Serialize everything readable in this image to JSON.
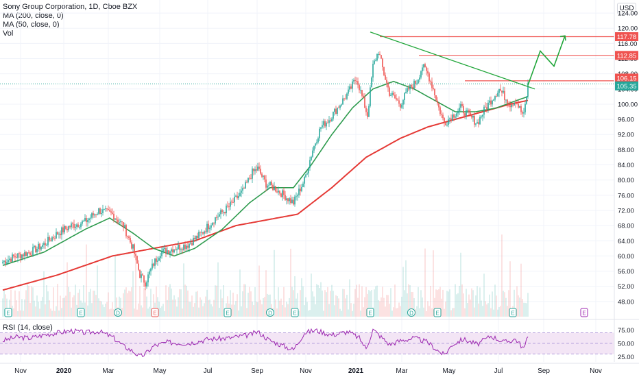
{
  "legend": {
    "title": "Sony Group Corporation, 1D, Cboe BZX",
    "ma200": "MA (200, close, 0)",
    "ma50": "MA (50, close, 0)",
    "vol": "Vol"
  },
  "currency": "USD",
  "rsi_label": "RSI (14, close)",
  "colors": {
    "up": "#26a69a",
    "down": "#ef5350",
    "ma50": "#2e9b4e",
    "ma200": "#e53935",
    "rsi": "#9c27b0",
    "rsi_band": "#f3e5f5",
    "line_trend": "#21a63a",
    "price_current": "#26a69a",
    "hline": "#ef5350"
  },
  "chart_data": [
    {
      "type": "candlestick",
      "x_axis_labels": [
        "Nov",
        "2020",
        "Mar",
        "May",
        "Jul",
        "Sep",
        "Nov",
        "2021",
        "Mar",
        "May",
        "Jul",
        "Sep",
        "Nov"
      ],
      "y_ticks": [
        48.0,
        52.0,
        56.0,
        60.0,
        64.0,
        68.0,
        72.0,
        76.0,
        80.0,
        84.0,
        88.0,
        92.0,
        96.0,
        100.0,
        104.0,
        108.0,
        112.0,
        116.0,
        120.0,
        124.0
      ],
      "ylim": [
        44,
        126
      ],
      "close_anchors": [
        [
          0,
          58.5
        ],
        [
          10,
          60
        ],
        [
          20,
          61
        ],
        [
          30,
          63
        ],
        [
          40,
          66
        ],
        [
          50,
          68
        ],
        [
          60,
          69
        ],
        [
          70,
          72
        ],
        [
          80,
          71
        ],
        [
          88,
          68
        ],
        [
          95,
          62
        ],
        [
          100,
          55
        ],
        [
          104,
          53
        ],
        [
          110,
          58
        ],
        [
          115,
          61
        ],
        [
          125,
          62
        ],
        [
          135,
          63
        ],
        [
          145,
          66
        ],
        [
          155,
          70
        ],
        [
          165,
          73
        ],
        [
          175,
          77
        ],
        [
          182,
          82
        ],
        [
          186,
          83
        ],
        [
          192,
          79
        ],
        [
          198,
          78
        ],
        [
          205,
          76
        ],
        [
          212,
          74
        ],
        [
          220,
          80
        ],
        [
          226,
          88
        ],
        [
          232,
          94
        ],
        [
          238,
          96
        ],
        [
          244,
          99
        ],
        [
          252,
          103
        ],
        [
          258,
          107
        ],
        [
          262,
          102
        ],
        [
          266,
          97
        ],
        [
          270,
          110
        ],
        [
          274,
          114
        ],
        [
          278,
          108
        ],
        [
          282,
          103
        ],
        [
          290,
          100
        ],
        [
          296,
          104
        ],
        [
          302,
          106
        ],
        [
          306,
          110
        ],
        [
          310,
          108
        ],
        [
          314,
          104
        ],
        [
          318,
          99
        ],
        [
          322,
          95
        ],
        [
          328,
          97
        ],
        [
          334,
          99
        ],
        [
          340,
          97
        ],
        [
          346,
          95
        ],
        [
          352,
          99
        ],
        [
          356,
          101
        ],
        [
          362,
          104
        ],
        [
          366,
          102
        ],
        [
          370,
          100
        ],
        [
          374,
          101
        ],
        [
          378,
          98
        ],
        [
          380,
          97
        ],
        [
          383,
          105
        ]
      ],
      "ma50_anchors": [
        [
          0,
          57.5
        ],
        [
          30,
          61
        ],
        [
          60,
          67
        ],
        [
          78,
          70
        ],
        [
          95,
          66
        ],
        [
          110,
          62
        ],
        [
          125,
          60
        ],
        [
          140,
          62
        ],
        [
          160,
          67
        ],
        [
          180,
          74
        ],
        [
          195,
          78
        ],
        [
          212,
          78
        ],
        [
          225,
          84
        ],
        [
          240,
          92
        ],
        [
          255,
          99
        ],
        [
          270,
          104
        ],
        [
          285,
          106
        ],
        [
          300,
          104
        ],
        [
          315,
          101
        ],
        [
          330,
          98
        ],
        [
          345,
          98
        ],
        [
          360,
          99
        ],
        [
          375,
          101
        ],
        [
          383,
          102
        ]
      ],
      "ma200_anchors": [
        [
          0,
          51
        ],
        [
          40,
          55
        ],
        [
          80,
          60
        ],
        [
          110,
          62
        ],
        [
          140,
          64
        ],
        [
          170,
          68
        ],
        [
          200,
          70
        ],
        [
          215,
          71
        ],
        [
          240,
          78
        ],
        [
          265,
          86
        ],
        [
          290,
          91
        ],
        [
          310,
          94
        ],
        [
          330,
          96
        ],
        [
          350,
          98
        ],
        [
          370,
          100
        ],
        [
          383,
          101
        ]
      ],
      "right_axis_price_labels": [
        "117.78",
        "112.85",
        "106.15",
        "105.35"
      ],
      "horizontal_levels": [
        {
          "value": 117.78,
          "label": "117.78"
        },
        {
          "value": 112.85,
          "label": "112.85"
        },
        {
          "value": 106.15,
          "label": "106.15"
        },
        {
          "value": 105.35,
          "label": "105.35",
          "current": true
        }
      ],
      "trendline": [
        [
          268,
          119
        ],
        [
          388,
          104
        ]
      ],
      "projection": [
        [
          383,
          105
        ],
        [
          392,
          114
        ],
        [
          402,
          110
        ],
        [
          410,
          118
        ]
      ],
      "event_markers": [
        {
          "bar": 4,
          "letter": "E"
        },
        {
          "bar": 57,
          "letter": "E"
        },
        {
          "bar": 84,
          "letter": "D"
        },
        {
          "bar": 111,
          "letter": "E"
        },
        {
          "bar": 164,
          "letter": "E"
        },
        {
          "bar": 195,
          "letter": "D"
        },
        {
          "bar": 213,
          "letter": "E"
        },
        {
          "bar": 268,
          "letter": "E"
        },
        {
          "bar": 298,
          "letter": "D"
        },
        {
          "bar": 317,
          "letter": "E"
        },
        {
          "bar": 372,
          "letter": "E"
        },
        {
          "bar": 424,
          "letter": "E"
        }
      ]
    },
    {
      "type": "line",
      "name": "RSI (14, close)",
      "y_ticks": [
        75.0,
        50.0,
        25.0
      ],
      "ylim": [
        15,
        90
      ],
      "band": [
        30,
        70
      ],
      "anchors": [
        [
          0,
          55
        ],
        [
          10,
          62
        ],
        [
          20,
          60
        ],
        [
          30,
          66
        ],
        [
          40,
          70
        ],
        [
          50,
          74
        ],
        [
          60,
          70
        ],
        [
          70,
          73
        ],
        [
          80,
          62
        ],
        [
          88,
          45
        ],
        [
          95,
          35
        ],
        [
          100,
          25
        ],
        [
          104,
          30
        ],
        [
          110,
          45
        ],
        [
          120,
          52
        ],
        [
          135,
          50
        ],
        [
          150,
          58
        ],
        [
          165,
          60
        ],
        [
          180,
          66
        ],
        [
          186,
          72
        ],
        [
          195,
          55
        ],
        [
          205,
          45
        ],
        [
          212,
          38
        ],
        [
          220,
          70
        ],
        [
          228,
          75
        ],
        [
          240,
          66
        ],
        [
          252,
          72
        ],
        [
          260,
          60
        ],
        [
          265,
          40
        ],
        [
          270,
          76
        ],
        [
          276,
          62
        ],
        [
          282,
          48
        ],
        [
          290,
          55
        ],
        [
          300,
          60
        ],
        [
          310,
          52
        ],
        [
          318,
          35
        ],
        [
          322,
          28
        ],
        [
          328,
          48
        ],
        [
          336,
          58
        ],
        [
          346,
          48
        ],
        [
          356,
          64
        ],
        [
          366,
          52
        ],
        [
          374,
          58
        ],
        [
          380,
          40
        ],
        [
          383,
          62
        ]
      ]
    }
  ]
}
